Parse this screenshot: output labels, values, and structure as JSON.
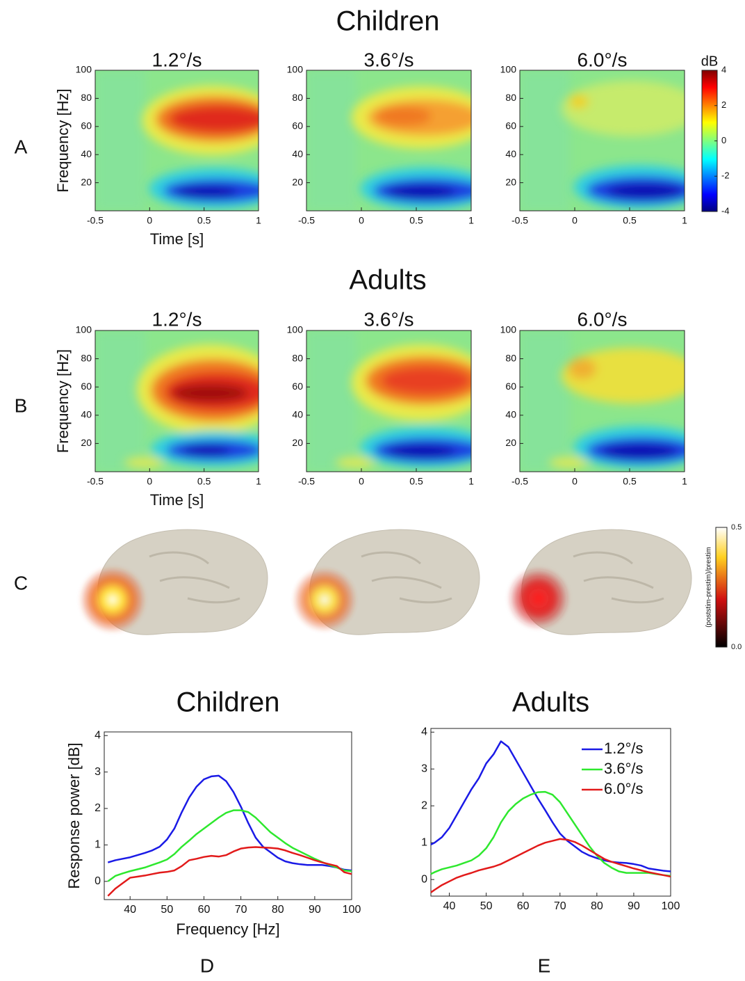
{
  "figure_titles": [
    "Children",
    "Adults"
  ],
  "panel_labels": [
    "A",
    "B",
    "C",
    "D",
    "E"
  ],
  "chart_data": [
    {
      "type": "heatmap",
      "title": "1.2°/s",
      "xlabel": "Time [s]",
      "ylabel": "Frequency [Hz]",
      "xlim": [
        -0.5,
        1
      ],
      "ylim": [
        0,
        100
      ],
      "xticks": [
        -0.5,
        0,
        0.5,
        1
      ],
      "yticks": [
        20,
        40,
        60,
        80,
        100
      ]
    },
    {
      "type": "heatmap",
      "title": "3.6°/s",
      "xlim": [
        -0.5,
        1
      ],
      "ylim": [
        0,
        100
      ],
      "xticks": [
        -0.5,
        0,
        0.5,
        1
      ],
      "yticks": [
        20,
        40,
        60,
        80,
        100
      ]
    },
    {
      "type": "heatmap",
      "title": "6.0°/s",
      "xlim": [
        -0.5,
        1
      ],
      "ylim": [
        0,
        100
      ],
      "xticks": [
        -0.5,
        0,
        0.5,
        1
      ],
      "yticks": [
        20,
        40,
        60,
        80,
        100
      ],
      "colorbar": {
        "label": "dB",
        "lim": [
          -4,
          4
        ],
        "ticks": [
          -4,
          -2,
          0,
          2,
          4
        ]
      }
    },
    {
      "type": "heatmap",
      "title": "1.2°/s",
      "xlabel": "Time [s]",
      "ylabel": "Frequency [Hz]",
      "xlim": [
        -0.5,
        1
      ],
      "ylim": [
        0,
        100
      ],
      "xticks": [
        -0.5,
        0,
        0.5,
        1
      ],
      "yticks": [
        20,
        40,
        60,
        80,
        100
      ]
    },
    {
      "type": "heatmap",
      "title": "3.6°/s",
      "xlim": [
        -0.5,
        1
      ],
      "ylim": [
        0,
        100
      ],
      "xticks": [
        -0.5,
        0,
        0.5,
        1
      ],
      "yticks": [
        20,
        40,
        60,
        80,
        100
      ]
    },
    {
      "type": "heatmap",
      "title": "6.0°/s",
      "xlim": [
        -0.5,
        1
      ],
      "ylim": [
        0,
        100
      ],
      "xticks": [
        -0.5,
        0,
        0.5,
        1
      ],
      "yticks": [
        20,
        40,
        60,
        80,
        100
      ]
    },
    {
      "type": "colorbar",
      "label": "(poststim-prestim)/prestim",
      "lim": [
        0,
        0.5
      ],
      "ticks": [
        {
          "value": 0,
          "label": "0.0"
        },
        0.5
      ]
    },
    {
      "type": "line",
      "title": "Children",
      "xlabel": "Frequency [Hz]",
      "ylabel": "Response power [dB]",
      "xlim": [
        33,
        100
      ],
      "ylim": [
        -0.5,
        4.1
      ],
      "xticks": [
        40,
        50,
        60,
        70,
        80,
        90,
        100
      ],
      "yticks": [
        0,
        1,
        2,
        3,
        4
      ],
      "x": [
        34,
        36,
        38,
        40,
        42,
        44,
        46,
        48,
        50,
        52,
        54,
        56,
        58,
        60,
        62,
        64,
        66,
        68,
        70,
        72,
        74,
        76,
        78,
        80,
        82,
        84,
        86,
        88,
        90,
        92,
        94,
        96,
        98,
        100
      ],
      "series": [
        {
          "color": "#1a1ae6",
          "values": [
            0.52,
            0.58,
            0.62,
            0.66,
            0.72,
            0.78,
            0.85,
            0.95,
            1.15,
            1.45,
            1.9,
            2.3,
            2.6,
            2.8,
            2.88,
            2.9,
            2.75,
            2.45,
            2.05,
            1.6,
            1.2,
            0.95,
            0.8,
            0.65,
            0.55,
            0.5,
            0.47,
            0.45,
            0.45,
            0.45,
            0.42,
            0.38,
            0.32,
            0.3
          ]
        },
        {
          "color": "#2ee82e",
          "values": [
            0.0,
            0.15,
            0.22,
            0.28,
            0.33,
            0.38,
            0.45,
            0.52,
            0.6,
            0.75,
            0.95,
            1.12,
            1.3,
            1.45,
            1.6,
            1.75,
            1.88,
            1.95,
            1.95,
            1.9,
            1.75,
            1.55,
            1.35,
            1.2,
            1.05,
            0.92,
            0.82,
            0.72,
            0.62,
            0.53,
            0.45,
            0.38,
            0.3,
            0.28
          ]
        },
        {
          "color": "#e21a1a",
          "values": [
            -0.4,
            -0.2,
            -0.05,
            0.1,
            0.13,
            0.16,
            0.2,
            0.24,
            0.26,
            0.3,
            0.42,
            0.58,
            0.62,
            0.67,
            0.7,
            0.68,
            0.72,
            0.82,
            0.9,
            0.93,
            0.94,
            0.93,
            0.92,
            0.9,
            0.85,
            0.78,
            0.72,
            0.65,
            0.58,
            0.52,
            0.47,
            0.42,
            0.25,
            0.2
          ]
        }
      ]
    },
    {
      "type": "line",
      "title": "Adults",
      "legend": "upper right",
      "xlim": [
        35,
        100
      ],
      "ylim": [
        -0.45,
        4.1
      ],
      "xticks": [
        40,
        50,
        60,
        70,
        80,
        90,
        100
      ],
      "yticks": [
        0,
        1,
        2,
        3,
        4
      ],
      "x": [
        35,
        36,
        38,
        40,
        42,
        44,
        46,
        48,
        50,
        52,
        54,
        56,
        58,
        60,
        62,
        64,
        66,
        68,
        70,
        72,
        74,
        76,
        78,
        80,
        82,
        84,
        86,
        88,
        90,
        92,
        94,
        96,
        98,
        100
      ],
      "series": [
        {
          "name": "1.2°/s",
          "color": "#1a1ae6",
          "values": [
            0.95,
            1.0,
            1.15,
            1.4,
            1.75,
            2.1,
            2.45,
            2.75,
            3.15,
            3.4,
            3.75,
            3.6,
            3.25,
            2.9,
            2.55,
            2.2,
            1.88,
            1.55,
            1.25,
            1.05,
            0.9,
            0.75,
            0.65,
            0.58,
            0.52,
            0.48,
            0.46,
            0.45,
            0.42,
            0.38,
            0.3,
            0.27,
            0.24,
            0.22
          ]
        },
        {
          "name": "3.6°/s",
          "color": "#2ee82e",
          "values": [
            0.15,
            0.2,
            0.28,
            0.33,
            0.38,
            0.45,
            0.52,
            0.65,
            0.85,
            1.15,
            1.55,
            1.85,
            2.05,
            2.2,
            2.3,
            2.37,
            2.38,
            2.3,
            2.1,
            1.8,
            1.5,
            1.2,
            0.9,
            0.65,
            0.45,
            0.32,
            0.22,
            0.18,
            0.18,
            0.18,
            0.18,
            0.15,
            0.12,
            0.1
          ]
        },
        {
          "name": "6.0°/s",
          "color": "#e21a1a",
          "values": [
            -0.35,
            -0.28,
            -0.15,
            -0.05,
            0.05,
            0.12,
            0.18,
            0.25,
            0.3,
            0.35,
            0.42,
            0.52,
            0.62,
            0.72,
            0.82,
            0.92,
            1.0,
            1.05,
            1.1,
            1.08,
            1.02,
            0.92,
            0.8,
            0.68,
            0.56,
            0.48,
            0.42,
            0.36,
            0.3,
            0.25,
            0.2,
            0.16,
            0.12,
            0.08
          ]
        }
      ]
    }
  ]
}
